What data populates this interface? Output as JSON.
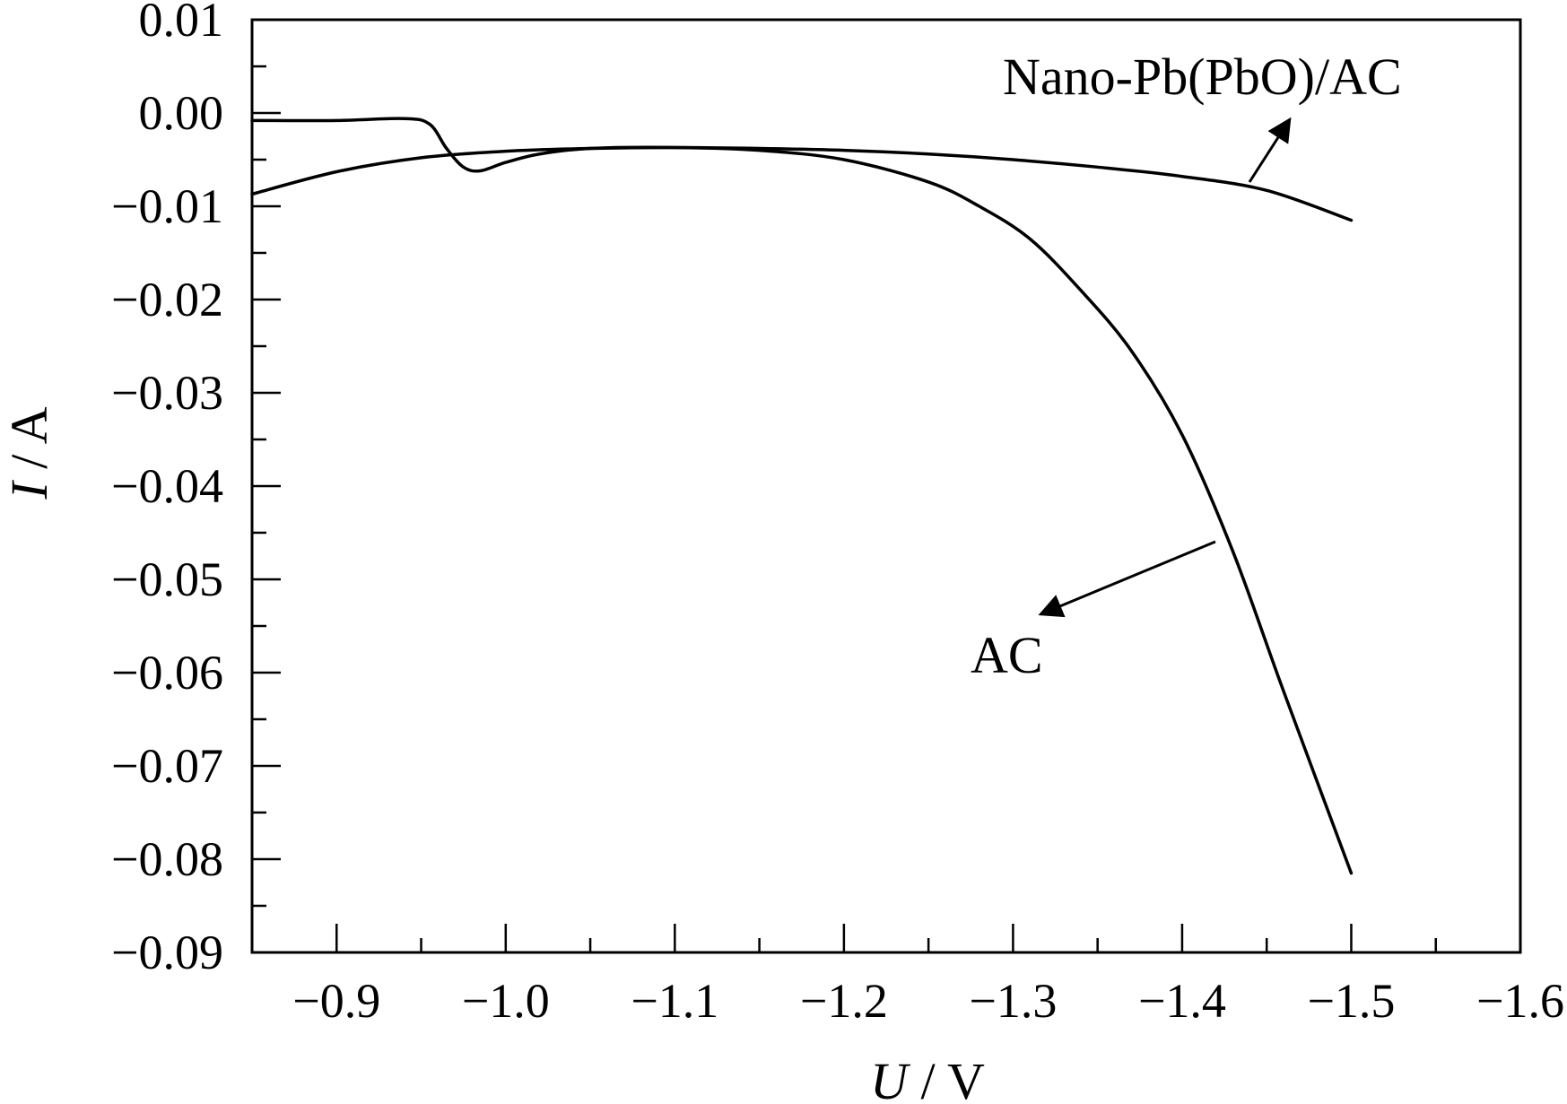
{
  "chart_data": {
    "type": "line",
    "xlabel_italic": "U",
    "xlabel_unit": " / V",
    "ylabel_italic": "I",
    "ylabel_unit": " / A",
    "xlim": [
      -0.85,
      -1.6
    ],
    "ylim": [
      -0.09,
      0.01
    ],
    "x_ticks": [
      -0.9,
      -1.0,
      -1.1,
      -1.2,
      -1.3,
      -1.4,
      -1.5,
      -1.6
    ],
    "x_tick_labels": [
      "−0.9",
      "−1.0",
      "−1.1",
      "−1.2",
      "−1.3",
      "−1.4",
      "−1.5",
      "−1.6"
    ],
    "y_ticks": [
      0.01,
      0.0,
      -0.01,
      -0.02,
      -0.03,
      -0.04,
      -0.05,
      -0.06,
      -0.07,
      -0.08,
      -0.09
    ],
    "y_tick_labels": [
      "0.01",
      "0.00",
      "−0.01",
      "−0.02",
      "−0.03",
      "−0.04",
      "−0.05",
      "−0.06",
      "−0.07",
      "−0.08",
      "−0.09"
    ],
    "grid": false,
    "series": [
      {
        "name": "Nano-Pb(PbO)/AC",
        "x": [
          -0.85,
          -0.9,
          -0.95,
          -1.0,
          -1.05,
          -1.1,
          -1.15,
          -1.2,
          -1.25,
          -1.3,
          -1.35,
          -1.4,
          -1.45,
          -1.5
        ],
        "y": [
          -0.0087,
          -0.0063,
          -0.0048,
          -0.0041,
          -0.0038,
          -0.0037,
          -0.0038,
          -0.004,
          -0.0044,
          -0.005,
          -0.0058,
          -0.0068,
          -0.0083,
          -0.0115
        ]
      },
      {
        "name": "AC",
        "x": [
          -0.85,
          -0.9,
          -0.94,
          -0.955,
          -0.965,
          -0.975,
          -0.985,
          -1.0,
          -1.02,
          -1.05,
          -1.1,
          -1.15,
          -1.2,
          -1.25,
          -1.28,
          -1.31,
          -1.34,
          -1.37,
          -1.4,
          -1.43,
          -1.46,
          -1.5
        ],
        "y": [
          -0.0008,
          -0.0008,
          -0.0006,
          -0.0012,
          -0.0038,
          -0.0058,
          -0.0062,
          -0.0053,
          -0.0044,
          -0.0038,
          -0.0037,
          -0.004,
          -0.005,
          -0.0074,
          -0.01,
          -0.0135,
          -0.019,
          -0.0255,
          -0.0345,
          -0.047,
          -0.062,
          -0.0815
        ]
      }
    ],
    "annotations": [
      {
        "text": "Nano-Pb(PbO)/AC",
        "target_series": "Nano-Pb(PbO)/AC"
      },
      {
        "text": "AC",
        "target_series": "AC"
      }
    ]
  }
}
